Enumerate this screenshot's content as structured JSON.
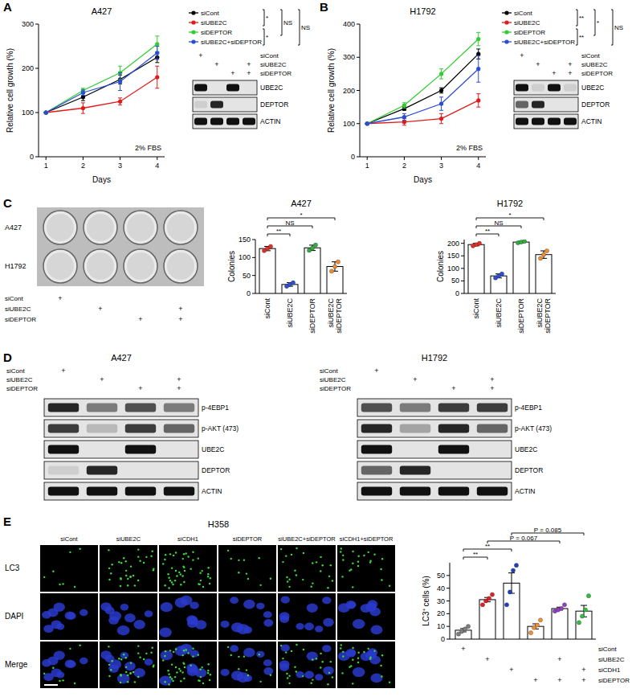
{
  "figure": {
    "panel_labels": [
      "A",
      "B",
      "C",
      "D",
      "E"
    ]
  },
  "chart_data": [
    {
      "type": "line",
      "title": "A427",
      "xlabel": "Days",
      "ylabel": "Relative cell growth (%)",
      "annotations": [
        {
          "text": "2% FBS"
        },
        {
          "pair": [
            0,
            1
          ],
          "text": "*"
        },
        {
          "pair": [
            0,
            2
          ],
          "text": "NS"
        },
        {
          "pair": [
            2,
            3
          ],
          "text": "*"
        },
        {
          "pair": [
            0,
            3
          ],
          "text": "NS"
        }
      ],
      "x": [
        1,
        2,
        3,
        4
      ],
      "xlim": [
        0.8,
        4.2
      ],
      "xticks": [
        1,
        2,
        3,
        4
      ],
      "ylim": [
        0,
        300
      ],
      "yticks": [
        0,
        100,
        200,
        300
      ],
      "marker": "circle",
      "legend": "right",
      "series": [
        {
          "name": "siCont",
          "color": "#000000",
          "values": [
            100,
            135,
            175,
            225
          ],
          "errors": [
            0,
            8,
            10,
            12
          ]
        },
        {
          "name": "siUBE2C",
          "color": "#e31a1c",
          "values": [
            100,
            110,
            125,
            180
          ],
          "errors": [
            0,
            12,
            8,
            25
          ]
        },
        {
          "name": "siDEPTOR",
          "color": "#33cc33",
          "values": [
            100,
            150,
            190,
            255
          ],
          "errors": [
            0,
            5,
            15,
            18
          ]
        },
        {
          "name": "siUBE2C+siDEPTOR",
          "color": "#2b4cd6",
          "values": [
            100,
            145,
            170,
            235
          ],
          "errors": [
            0,
            6,
            20,
            15
          ]
        }
      ]
    },
    {
      "type": "line",
      "title": "H1792",
      "xlabel": "Days",
      "ylabel": "Relative cell growth (%)",
      "annotations": [
        {
          "text": "2% FBS"
        },
        {
          "pair": [
            0,
            1
          ],
          "text": "**"
        },
        {
          "pair": [
            0,
            2
          ],
          "text": "*"
        },
        {
          "pair": [
            2,
            3
          ],
          "text": "**"
        },
        {
          "pair": [
            0,
            3
          ],
          "text": "NS"
        }
      ],
      "x": [
        1,
        2,
        3,
        4
      ],
      "xlim": [
        0.8,
        4.2
      ],
      "xticks": [
        1,
        2,
        3,
        4
      ],
      "ylim": [
        0,
        400
      ],
      "yticks": [
        0,
        100,
        200,
        300,
        400
      ],
      "marker": "circle",
      "legend": "right",
      "series": [
        {
          "name": "siCont",
          "color": "#000000",
          "values": [
            100,
            145,
            200,
            310
          ],
          "errors": [
            0,
            5,
            8,
            15
          ]
        },
        {
          "name": "siUBE2C",
          "color": "#e31a1c",
          "values": [
            100,
            105,
            115,
            170
          ],
          "errors": [
            0,
            10,
            15,
            20
          ]
        },
        {
          "name": "siDEPTOR",
          "color": "#33cc33",
          "values": [
            100,
            155,
            250,
            355
          ],
          "errors": [
            0,
            8,
            15,
            20
          ]
        },
        {
          "name": "siUBE2C+siDEPTOR",
          "color": "#2b4cd6",
          "values": [
            100,
            120,
            160,
            265
          ],
          "errors": [
            0,
            10,
            20,
            40
          ]
        }
      ]
    },
    {
      "type": "bar",
      "title": "A427",
      "ylabel": "Colonies",
      "categories": [
        "siCont",
        "siUBE2C",
        "siDEPTOR",
        "siUBE2C\nsiDEPTOR"
      ],
      "values": [
        125,
        25,
        127,
        75
      ],
      "errors": [
        6,
        5,
        7.5,
        13
      ],
      "points": [
        [
          119,
          125,
          131
        ],
        [
          20,
          25,
          30
        ],
        [
          120,
          126,
          135
        ],
        [
          62,
          75,
          88
        ]
      ],
      "colors": [
        "#e0302a",
        "#3050d0",
        "#30b040",
        "#f08c30"
      ],
      "ylim": [
        0,
        150
      ],
      "yticks": [
        0,
        50,
        100,
        150
      ],
      "annotations": [
        {
          "pair": [
            0,
            1
          ],
          "text": "**"
        },
        {
          "pair": [
            0,
            2
          ],
          "text": "NS"
        },
        {
          "pair": [
            0,
            3
          ],
          "text": "*"
        }
      ]
    },
    {
      "type": "bar",
      "title": "H1792",
      "ylabel": "Colonies",
      "categories": [
        "siCont",
        "siUBE2C",
        "siDEPTOR",
        "siUBE2C\nsiDEPTOR"
      ],
      "values": [
        195,
        70,
        205,
        155
      ],
      "errors": [
        5,
        8,
        3,
        15
      ],
      "points": [
        [
          190,
          195,
          200
        ],
        [
          62,
          70,
          78
        ],
        [
          202,
          205,
          208
        ],
        [
          140,
          155,
          170
        ]
      ],
      "colors": [
        "#e0302a",
        "#3050d0",
        "#30b040",
        "#f08c30"
      ],
      "ylim": [
        0,
        215
      ],
      "yticks": [
        0,
        50,
        100,
        150,
        200
      ],
      "annotations": [
        {
          "pair": [
            0,
            1
          ],
          "text": "**"
        },
        {
          "pair": [
            0,
            2
          ],
          "text": "NS"
        },
        {
          "pair": [
            0,
            3
          ],
          "text": "*"
        }
      ]
    },
    {
      "type": "bar",
      "ylabel": "LC3⁺ cells (%)",
      "categories": [
        null,
        null,
        null,
        null,
        null,
        null
      ],
      "values": [
        7,
        31,
        44,
        10,
        24,
        22
      ],
      "errors": [
        1.3,
        1.7,
        8,
        2,
        1.1,
        4.5
      ],
      "points": [
        [
          4,
          6,
          8,
          10
        ],
        [
          27,
          30,
          32,
          35
        ],
        [
          27,
          37,
          54,
          58
        ],
        [
          5,
          9,
          11,
          15
        ],
        [
          22,
          23,
          24,
          27
        ],
        [
          13,
          18,
          23,
          34
        ]
      ],
      "colors": [
        "#7f7f7f",
        "#e02020",
        "#2040c0",
        "#f09030",
        "#9040c0",
        "#30c040"
      ],
      "ylim": [
        0,
        60
      ],
      "yticks": [
        0,
        10,
        20,
        30,
        40,
        50
      ],
      "annotations": [
        {
          "pair": [
            0,
            1
          ],
          "text": "**"
        },
        {
          "pair": [
            0,
            2
          ],
          "text": "**"
        },
        {
          "pair": [
            1,
            4
          ],
          "text": "P = 0.067"
        },
        {
          "pair": [
            2,
            5
          ],
          "text": "P = 0.085"
        }
      ]
    }
  ],
  "blots": [
    {
      "conditions": [
        {
          "label": "siCont",
          "marks": [
            "+",
            null,
            null,
            null
          ]
        },
        {
          "label": "siUBE2C",
          "marks": [
            null,
            "+",
            null,
            "+"
          ]
        },
        {
          "label": "siDEPTOR",
          "marks": [
            null,
            null,
            "+",
            "+"
          ]
        }
      ],
      "rows": [
        {
          "label": "UBE2C",
          "bands": [
            1,
            0,
            1,
            0
          ]
        },
        {
          "label": "DEPTOR",
          "bands": [
            0.1,
            0.9,
            0,
            0
          ]
        },
        {
          "label": "ACTIN",
          "bands": [
            1,
            1,
            1,
            1
          ]
        }
      ]
    },
    {
      "conditions": [
        {
          "label": "siCont",
          "marks": [
            "+",
            null,
            null,
            null
          ]
        },
        {
          "label": "siUBE2C",
          "marks": [
            null,
            "+",
            null,
            "+"
          ]
        },
        {
          "label": "siDEPTOR",
          "marks": [
            null,
            null,
            "+",
            "+"
          ]
        }
      ],
      "rows": [
        {
          "label": "UBE2C",
          "bands": [
            1,
            0.1,
            1,
            0.1
          ]
        },
        {
          "label": "DEPTOR",
          "bands": [
            0.6,
            0.9,
            0,
            0
          ]
        },
        {
          "label": "ACTIN",
          "bands": [
            1,
            1,
            1,
            1
          ]
        }
      ]
    },
    {
      "title": "A427",
      "conditions": [
        {
          "label": "siCont",
          "marks": [
            "+",
            null,
            null,
            null
          ]
        },
        {
          "label": "siUBE2C",
          "marks": [
            null,
            "+",
            null,
            "+"
          ]
        },
        {
          "label": "siDEPTOR",
          "marks": [
            null,
            null,
            "+",
            "+"
          ]
        }
      ],
      "rows": [
        {
          "label": "p-4EBP1",
          "bands": [
            0.9,
            0.5,
            0.7,
            0.5
          ]
        },
        {
          "label": "p-AKT (473)",
          "bands": [
            0.8,
            0.2,
            0.8,
            0.6
          ]
        },
        {
          "label": "UBE2C",
          "bands": [
            1,
            0,
            1,
            0
          ]
        },
        {
          "label": "DEPTOR",
          "bands": [
            0.1,
            0.9,
            0,
            0
          ]
        },
        {
          "label": "ACTIN",
          "bands": [
            1,
            1,
            1,
            1
          ]
        }
      ]
    },
    {
      "title": "H1792",
      "conditions": [
        {
          "label": "siCont",
          "marks": [
            "+",
            null,
            null,
            null
          ]
        },
        {
          "label": "siUBE2C",
          "marks": [
            null,
            "+",
            null,
            "+"
          ]
        },
        {
          "label": "siDEPTOR",
          "marks": [
            null,
            null,
            "+",
            "+"
          ]
        }
      ],
      "rows": [
        {
          "label": "p-4EBP1",
          "bands": [
            0.7,
            0.5,
            0.8,
            0.8
          ]
        },
        {
          "label": "p-AKT (473)",
          "bands": [
            0.9,
            0.3,
            0.9,
            0.6
          ]
        },
        {
          "label": "UBE2C",
          "bands": [
            1,
            0,
            1,
            0
          ]
        },
        {
          "label": "DEPTOR",
          "bands": [
            0.6,
            0.9,
            0,
            0
          ]
        },
        {
          "label": "ACTIN",
          "bands": [
            1,
            1,
            1,
            1
          ]
        }
      ]
    }
  ],
  "colony_plate": {
    "rows": [
      "A427",
      "H1792"
    ],
    "conditions": [
      {
        "label": "siCont",
        "marks": [
          "+",
          null,
          null,
          null
        ]
      },
      {
        "label": "siUBE2C",
        "marks": [
          null,
          "+",
          null,
          "+"
        ]
      },
      {
        "label": "siDEPTOR",
        "marks": [
          null,
          null,
          "+",
          "+"
        ]
      }
    ]
  },
  "microscopy": {
    "title": "H358",
    "columns": [
      "siCont",
      "siUBE2C",
      "siCDH1",
      "siDEPTOR",
      "siUBE2C+siDEPTOR",
      "siCDH1+siDEPTOR"
    ],
    "rows": [
      "LC3",
      "DAPI",
      "Merge"
    ]
  },
  "lc3_conditions": [
    {
      "label": "siCont",
      "marks": [
        "+",
        null,
        null,
        null,
        null,
        null
      ]
    },
    {
      "label": "siUBE2C",
      "marks": [
        null,
        "+",
        null,
        null,
        "+",
        null
      ]
    },
    {
      "label": "siCDH1",
      "marks": [
        null,
        null,
        "+",
        null,
        null,
        "+"
      ]
    },
    {
      "label": "siDEPTOR",
      "marks": [
        null,
        null,
        null,
        "+",
        "+",
        "+"
      ]
    }
  ]
}
